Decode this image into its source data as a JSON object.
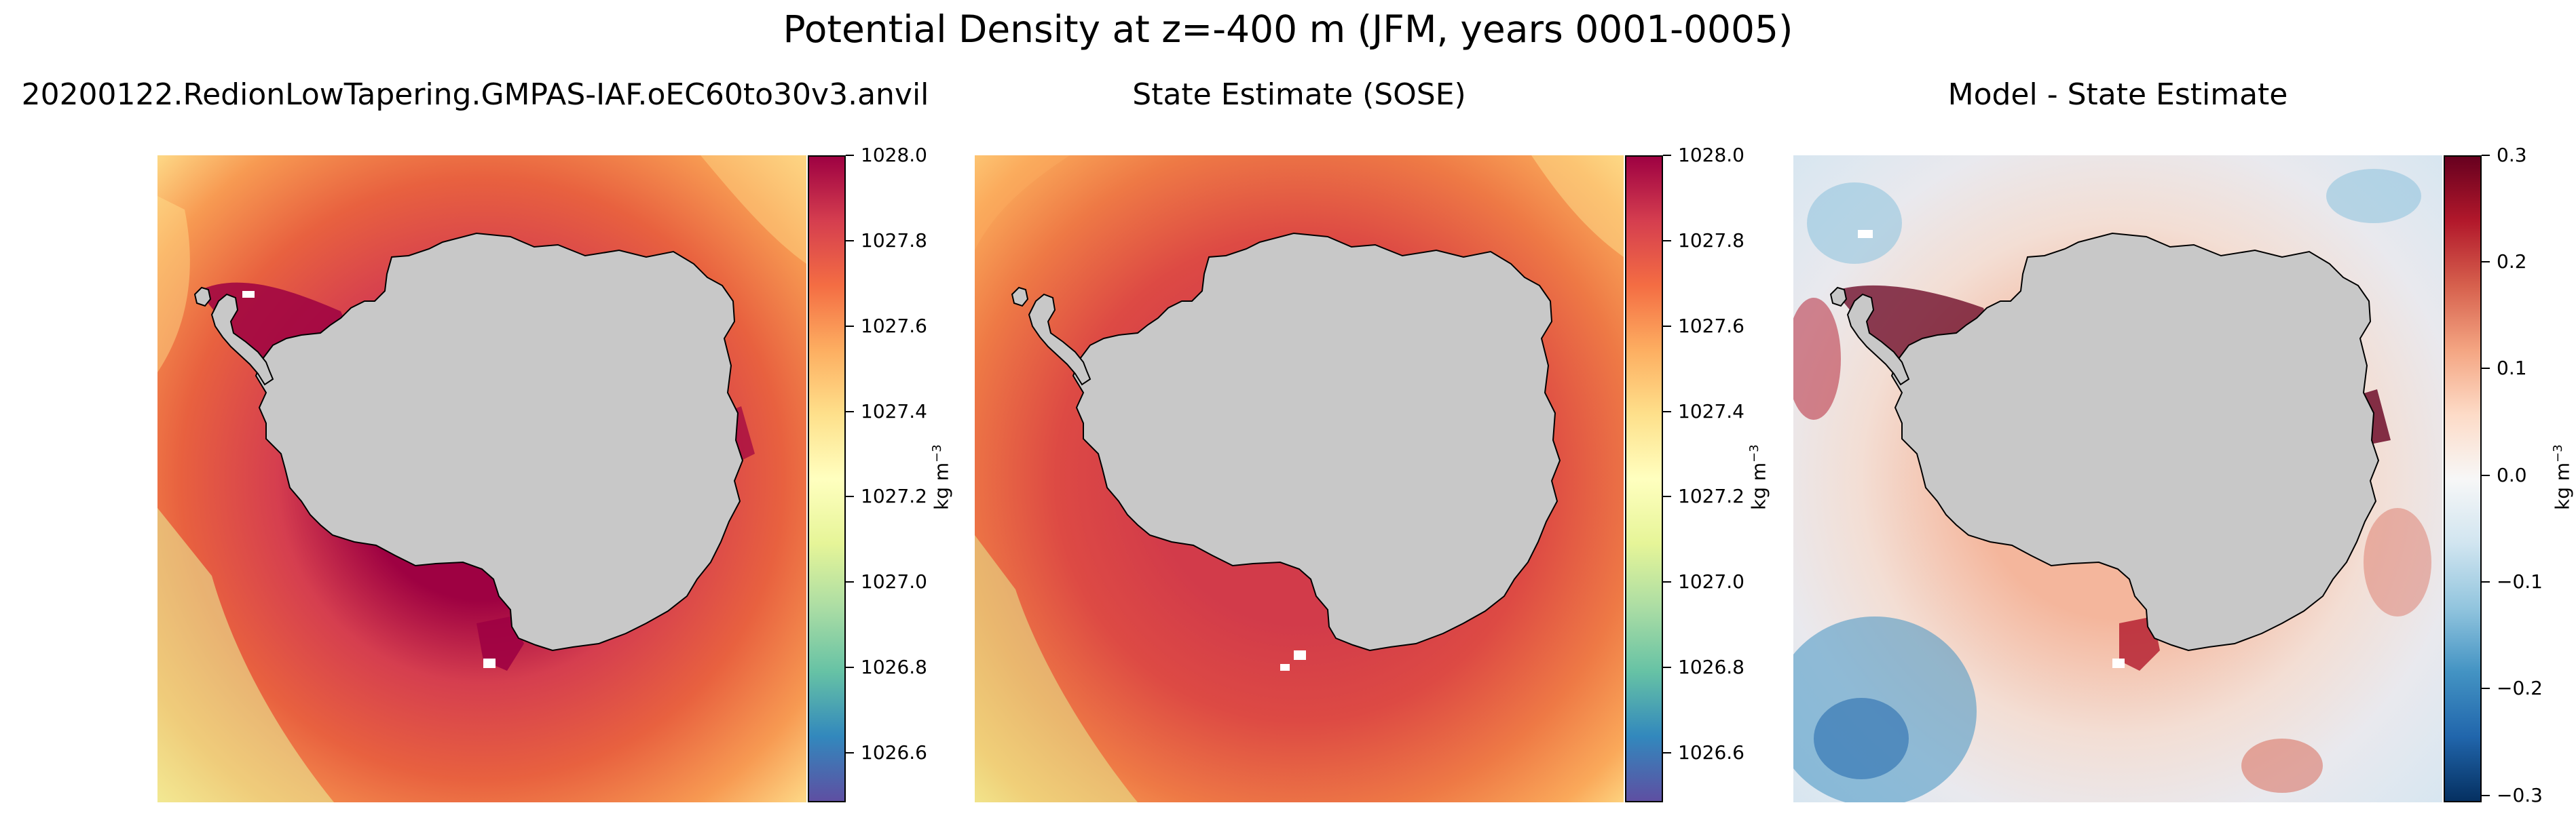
{
  "figure": {
    "title": "Potential Density at z=-400 m (JFM, years 0001-0005)"
  },
  "panels": [
    {
      "title": "20200122.RedionLowTapering.GMPAS-IAF.oEC60to30v3.anvil",
      "colormap": "Spectral_r",
      "colorbar": {
        "label": "kg m",
        "label_superscript": "−3",
        "ticks": [
          "1028.0",
          "1027.8",
          "1027.6",
          "1027.4",
          "1027.2",
          "1027.0",
          "1026.8",
          "1026.6"
        ],
        "colors": [
          "#9e0142",
          "#d53e4f",
          "#f46d43",
          "#fdae61",
          "#fee08b",
          "#ffffbf",
          "#e6f598",
          "#abdda4",
          "#66c2a5",
          "#3288bd",
          "#5e4fa2"
        ]
      }
    },
    {
      "title": "State Estimate (SOSE)",
      "colormap": "Spectral_r",
      "colorbar": {
        "label": "kg m",
        "label_superscript": "−3",
        "ticks": [
          "1028.0",
          "1027.8",
          "1027.6",
          "1027.4",
          "1027.2",
          "1027.0",
          "1026.8",
          "1026.6"
        ],
        "colors": [
          "#9e0142",
          "#d53e4f",
          "#f46d43",
          "#fdae61",
          "#fee08b",
          "#ffffbf",
          "#e6f598",
          "#abdda4",
          "#66c2a5",
          "#3288bd",
          "#5e4fa2"
        ]
      }
    },
    {
      "title": "Model - State Estimate",
      "colormap": "RdBu_r",
      "colorbar": {
        "label": "kg m",
        "label_superscript": "−3",
        "ticks": [
          "0.3",
          "0.2",
          "0.1",
          "0.0",
          "−0.1",
          "−0.2",
          "−0.3"
        ],
        "colors": [
          "#67001f",
          "#b2182b",
          "#d6604d",
          "#f4a582",
          "#fddbc7",
          "#f7f7f7",
          "#d1e5f0",
          "#92c5de",
          "#4393c3",
          "#2166ac",
          "#053061"
        ]
      }
    }
  ],
  "map": {
    "land_color": "#c8c8c8",
    "coast_color": "#000000",
    "ice_shelf_color": "#ffffff"
  }
}
